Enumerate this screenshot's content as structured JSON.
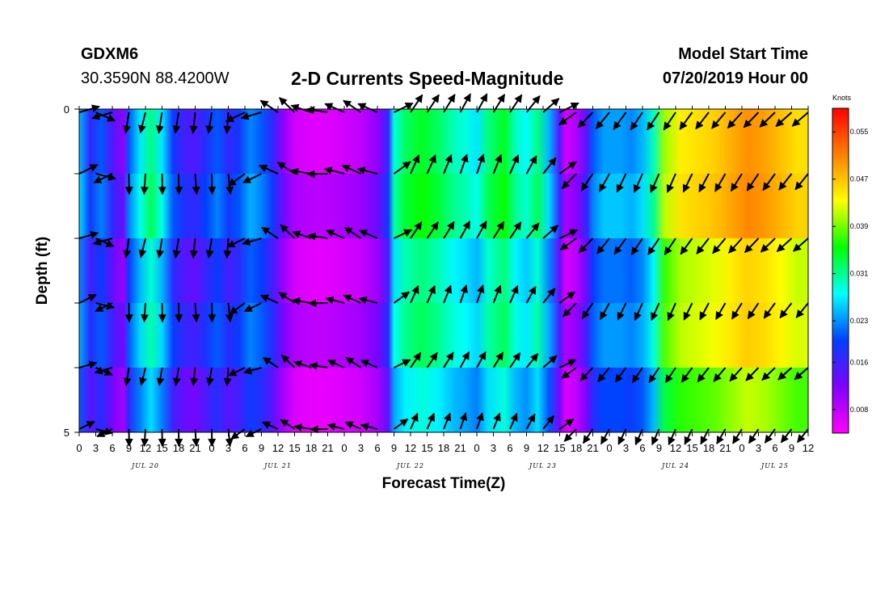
{
  "header": {
    "station_id": "GDXM6",
    "coords": "30.3590N 88.4200W",
    "title": "2-D Currents Speed-Magnitude",
    "model_start_label": "Model Start Time",
    "model_start_value": "07/20/2019 Hour 00"
  },
  "colors": {
    "scale": [
      "#ff00ff",
      "#8000ff",
      "#0040ff",
      "#00ffff",
      "#00ff00",
      "#ffff00",
      "#ff8000",
      "#ff0000"
    ],
    "vectors": "#000000",
    "frame": "#000000"
  },
  "chart_data": {
    "type": "heatmap",
    "xlabel": "Forecast Time(Z)",
    "ylabel": "Depth (ft)",
    "x_range_hours": [
      0,
      132
    ],
    "x_tick_step_hours": 3,
    "x_tick_labels": [
      "0",
      "3",
      "6",
      "9",
      "12",
      "15",
      "18",
      "21",
      "0",
      "3",
      "6",
      "9",
      "12",
      "15",
      "18",
      "21",
      "0",
      "3",
      "6",
      "9",
      "12",
      "15",
      "18",
      "21",
      "0",
      "3",
      "6",
      "9",
      "12",
      "15",
      "18",
      "21",
      "0",
      "3",
      "6",
      "9",
      "12",
      "15",
      "18",
      "21",
      "0",
      "3",
      "6",
      "9",
      "12"
    ],
    "day_labels": [
      {
        "label": "JUL 20",
        "hour": 12
      },
      {
        "label": "JUL 21",
        "hour": 36
      },
      {
        "label": "JUL 22",
        "hour": 60
      },
      {
        "label": "JUL 23",
        "hour": 84
      },
      {
        "label": "JUL 24",
        "hour": 108
      },
      {
        "label": "JUL 25",
        "hour": 126
      }
    ],
    "y_range_ft": [
      0,
      5
    ],
    "y_tick_labels": [
      {
        "label": "0",
        "value": 0
      },
      {
        "label": "5",
        "value": 5
      }
    ],
    "depth_levels_ft": [
      0,
      1,
      2,
      3,
      4,
      5
    ],
    "colorbar": {
      "title": "Knots",
      "min": 0.004,
      "max": 0.059,
      "labels": [
        "0.055",
        "0.047",
        "0.039",
        "0.031",
        "0.023",
        "0.016",
        "0.008"
      ],
      "label_values": [
        0.055,
        0.047,
        0.039,
        0.031,
        0.023,
        0.016,
        0.008
      ]
    },
    "speed_profile_knots": [
      {
        "hour": 0,
        "v": 0.026
      },
      {
        "hour": 2,
        "v": 0.018
      },
      {
        "hour": 4,
        "v": 0.022
      },
      {
        "hour": 6,
        "v": 0.016
      },
      {
        "hour": 8,
        "v": 0.012
      },
      {
        "hour": 9,
        "v": 0.022
      },
      {
        "hour": 11,
        "v": 0.028
      },
      {
        "hour": 13,
        "v": 0.033
      },
      {
        "hour": 15,
        "v": 0.028
      },
      {
        "hour": 17,
        "v": 0.02
      },
      {
        "hour": 19,
        "v": 0.017
      },
      {
        "hour": 21,
        "v": 0.016
      },
      {
        "hour": 23,
        "v": 0.019
      },
      {
        "hour": 25,
        "v": 0.022
      },
      {
        "hour": 27,
        "v": 0.018
      },
      {
        "hour": 29,
        "v": 0.02
      },
      {
        "hour": 31,
        "v": 0.024
      },
      {
        "hour": 33,
        "v": 0.022
      },
      {
        "hour": 35,
        "v": 0.018
      },
      {
        "hour": 37,
        "v": 0.012
      },
      {
        "hour": 39,
        "v": 0.008
      },
      {
        "hour": 42,
        "v": 0.007
      },
      {
        "hour": 45,
        "v": 0.007
      },
      {
        "hour": 48,
        "v": 0.008
      },
      {
        "hour": 51,
        "v": 0.009
      },
      {
        "hour": 54,
        "v": 0.012
      },
      {
        "hour": 56,
        "v": 0.018
      },
      {
        "hour": 57,
        "v": 0.03
      },
      {
        "hour": 59,
        "v": 0.034
      },
      {
        "hour": 62,
        "v": 0.036
      },
      {
        "hour": 65,
        "v": 0.034
      },
      {
        "hour": 68,
        "v": 0.031
      },
      {
        "hour": 70,
        "v": 0.03
      },
      {
        "hour": 72,
        "v": 0.028
      },
      {
        "hour": 74,
        "v": 0.033
      },
      {
        "hour": 77,
        "v": 0.036
      },
      {
        "hour": 79,
        "v": 0.031
      },
      {
        "hour": 81,
        "v": 0.029
      },
      {
        "hour": 83,
        "v": 0.033
      },
      {
        "hour": 85,
        "v": 0.026
      },
      {
        "hour": 87,
        "v": 0.016
      },
      {
        "hour": 88,
        "v": 0.008
      },
      {
        "hour": 90,
        "v": 0.01
      },
      {
        "hour": 92,
        "v": 0.016
      },
      {
        "hour": 93,
        "v": 0.022
      },
      {
        "hour": 95,
        "v": 0.025
      },
      {
        "hour": 98,
        "v": 0.025
      },
      {
        "hour": 100,
        "v": 0.024
      },
      {
        "hour": 102,
        "v": 0.026
      },
      {
        "hour": 104,
        "v": 0.031
      },
      {
        "hour": 106,
        "v": 0.042
      },
      {
        "hour": 109,
        "v": 0.046
      },
      {
        "hour": 112,
        "v": 0.047
      },
      {
        "hour": 115,
        "v": 0.048
      },
      {
        "hour": 118,
        "v": 0.05
      },
      {
        "hour": 121,
        "v": 0.052
      },
      {
        "hour": 124,
        "v": 0.051
      },
      {
        "hour": 127,
        "v": 0.049
      },
      {
        "hour": 130,
        "v": 0.047
      },
      {
        "hour": 132,
        "v": 0.047
      }
    ],
    "depth_speed_factor": [
      1.0,
      0.92,
      0.82,
      0.72,
      0.62,
      0.5
    ],
    "vector_direction_profile_deg": [
      {
        "hour": 0,
        "deg": 20
      },
      {
        "hour": 3,
        "deg": -20
      },
      {
        "hour": 6,
        "deg": 200
      },
      {
        "hour": 9,
        "deg": 265
      },
      {
        "hour": 12,
        "deg": 260
      },
      {
        "hour": 15,
        "deg": 265
      },
      {
        "hour": 18,
        "deg": 265
      },
      {
        "hour": 21,
        "deg": 268
      },
      {
        "hour": 24,
        "deg": 265
      },
      {
        "hour": 27,
        "deg": 270
      },
      {
        "hour": 30,
        "deg": 210
      },
      {
        "hour": 33,
        "deg": 200
      },
      {
        "hour": 36,
        "deg": 150
      },
      {
        "hour": 39,
        "deg": 140
      },
      {
        "hour": 42,
        "deg": 165
      },
      {
        "hour": 45,
        "deg": 175
      },
      {
        "hour": 48,
        "deg": 160
      },
      {
        "hour": 51,
        "deg": 150
      },
      {
        "hour": 54,
        "deg": 160
      },
      {
        "hour": 57,
        "deg": 30
      },
      {
        "hour": 60,
        "deg": 60
      },
      {
        "hour": 63,
        "deg": 60
      },
      {
        "hour": 66,
        "deg": 62
      },
      {
        "hour": 69,
        "deg": 65
      },
      {
        "hour": 72,
        "deg": 65
      },
      {
        "hour": 75,
        "deg": 62
      },
      {
        "hour": 78,
        "deg": 60
      },
      {
        "hour": 81,
        "deg": 55
      },
      {
        "hour": 84,
        "deg": 45
      },
      {
        "hour": 87,
        "deg": 30
      },
      {
        "hour": 90,
        "deg": 220
      },
      {
        "hour": 93,
        "deg": 230
      },
      {
        "hour": 96,
        "deg": 235
      },
      {
        "hour": 99,
        "deg": 238
      },
      {
        "hour": 102,
        "deg": 240
      },
      {
        "hour": 105,
        "deg": 240
      },
      {
        "hour": 108,
        "deg": 240
      },
      {
        "hour": 111,
        "deg": 238
      },
      {
        "hour": 114,
        "deg": 236
      },
      {
        "hour": 117,
        "deg": 234
      },
      {
        "hour": 120,
        "deg": 232
      },
      {
        "hour": 123,
        "deg": 230
      },
      {
        "hour": 126,
        "deg": 228
      },
      {
        "hour": 129,
        "deg": 226
      },
      {
        "hour": 132,
        "deg": 225
      }
    ],
    "vector_interval_hours": 3
  }
}
